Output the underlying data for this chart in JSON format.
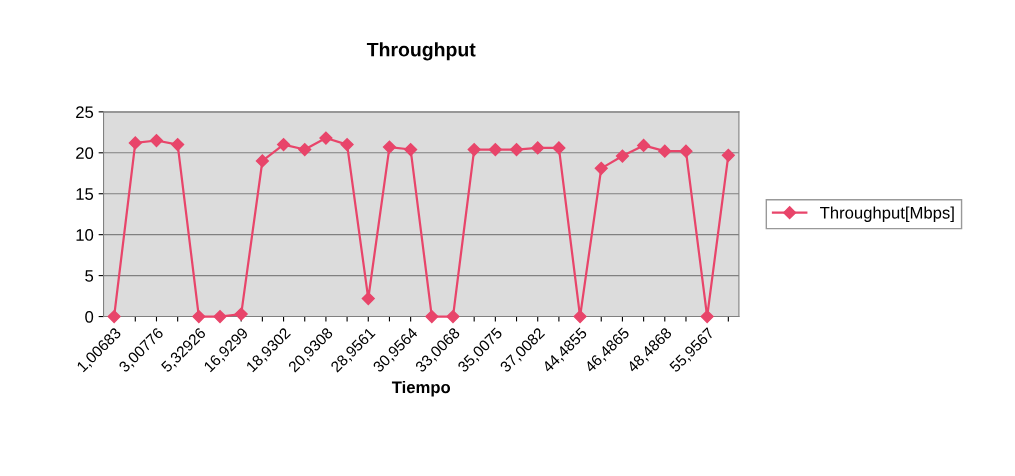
{
  "chart_data": {
    "type": "line",
    "title": "Throughput",
    "xlabel": "Tiempo",
    "categories": [
      "1,00683",
      null,
      "3,00776",
      null,
      "5,32926",
      null,
      "16,9299",
      null,
      "18,9302",
      null,
      "20,9308",
      null,
      "28,9561",
      null,
      "30,9564",
      null,
      "33,0068",
      null,
      "35,0075",
      null,
      "37,0082",
      null,
      "44,4855",
      null,
      "46,4865",
      null,
      "48,4868",
      null,
      "55,9567",
      null
    ],
    "series": [
      {
        "name": "Throughput[Mbps]",
        "color": "#e8456a",
        "values": [
          0,
          21.2,
          21.5,
          21.0,
          0,
          0,
          0.3,
          19.0,
          21.0,
          20.4,
          21.8,
          21.0,
          2.2,
          20.7,
          20.4,
          0,
          0,
          20.4,
          20.4,
          20.4,
          20.6,
          20.6,
          0,
          18.1,
          19.6,
          20.9,
          20.2,
          20.2,
          0,
          19.7
        ]
      }
    ],
    "ylim": [
      0,
      25
    ],
    "yticks": [
      0,
      5,
      10,
      15,
      20,
      25
    ],
    "grid": "y",
    "legend": "right",
    "marker": "diamond",
    "line_style": "solid"
  }
}
